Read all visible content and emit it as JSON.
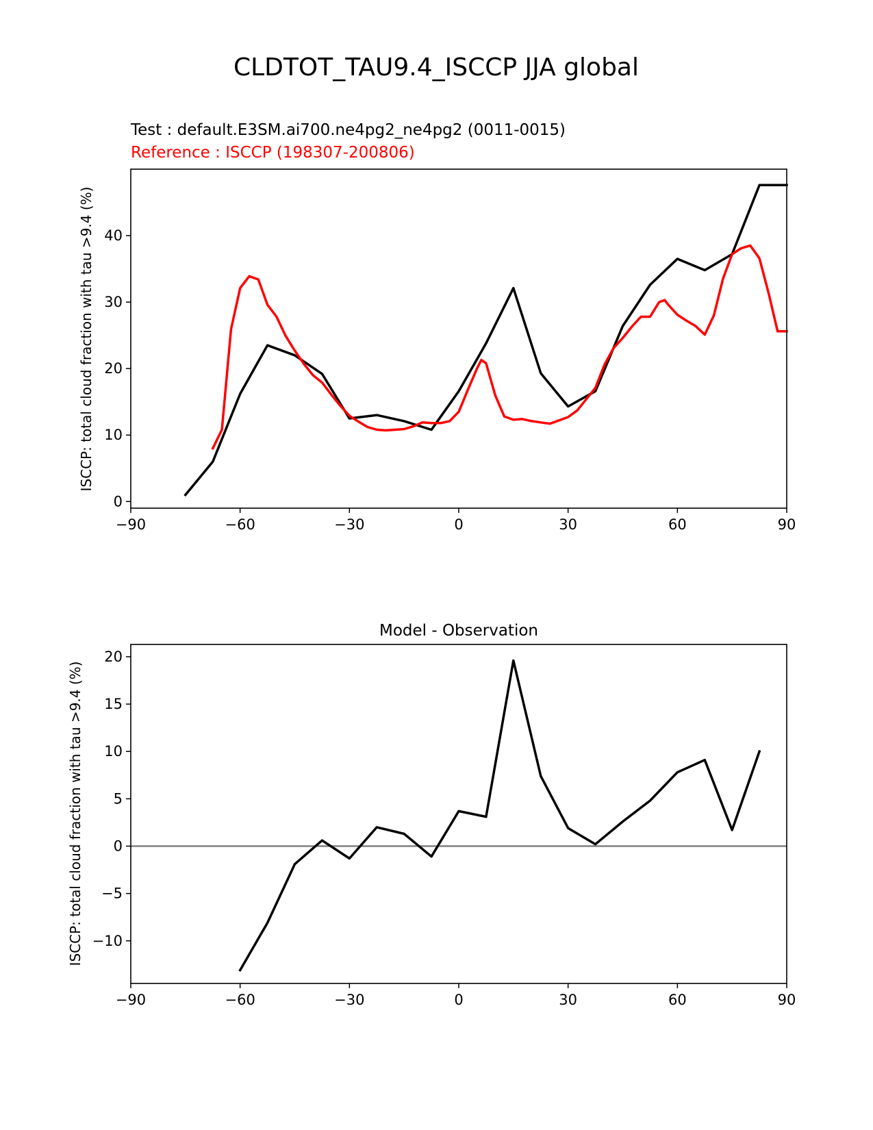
{
  "page": {
    "title": "CLDTOT_TAU9.4_ISCCP JJA global"
  },
  "colors": {
    "test": "#000000",
    "reference": "#ff0000",
    "zero_line": "#808080"
  },
  "chart_data": [
    {
      "type": "line",
      "test_label": "Test : default.E3SM.ai700.ne4pg2_ne4pg2 (0011-0015)",
      "reference_label": "Reference : ISCCP (198307-200806)",
      "ylabel": "ISCCP: total cloud fraction with tau >9.4 (%)",
      "xlim": [
        -90,
        90
      ],
      "ylim": [
        -1,
        50
      ],
      "xticks": [
        -90,
        -60,
        -30,
        0,
        30,
        60,
        90
      ],
      "xtick_labels": [
        "−90",
        "−60",
        "−30",
        "0",
        "30",
        "60",
        "90"
      ],
      "yticks": [
        0,
        10,
        20,
        30,
        40
      ],
      "ytick_labels": [
        "0",
        "10",
        "20",
        "30",
        "40"
      ],
      "series": [
        {
          "color": "#000000",
          "x": [
            -75,
            -67.5,
            -60,
            -52.5,
            -45,
            -37.5,
            -30,
            -22.5,
            -15,
            -7.5,
            0,
            7.5,
            15,
            22.5,
            30,
            37.5,
            45,
            52.5,
            60,
            67.5,
            75,
            82.5,
            90
          ],
          "y": [
            1.0,
            6.0,
            16.2,
            23.5,
            22.0,
            19.2,
            12.5,
            13.0,
            12.1,
            10.8,
            16.6,
            23.8,
            32.1,
            19.3,
            14.3,
            16.6,
            26.4,
            32.6,
            36.5,
            34.8,
            37.2,
            47.6,
            47.6
          ]
        },
        {
          "color": "#ff0000",
          "x": [
            -67.5,
            -65,
            -62.5,
            -60,
            -57.5,
            -55,
            -52.5,
            -50,
            -47.5,
            -45,
            -42.5,
            -40,
            -37.5,
            -35,
            -32.5,
            -30,
            -27.5,
            -25,
            -22.5,
            -20,
            -17.5,
            -15,
            -12.5,
            -10,
            -7.5,
            -5,
            -2.5,
            0,
            2.5,
            5,
            6.2,
            7.5,
            10,
            12.5,
            15,
            17.5,
            20,
            22.5,
            25,
            27.5,
            30,
            32.5,
            35,
            37.5,
            40,
            42.5,
            45,
            47.5,
            50,
            52.5,
            55,
            56.5,
            57.5,
            60,
            62.5,
            65,
            67.5,
            70,
            72.5,
            75,
            77.5,
            80,
            82.5,
            85,
            87.5,
            90
          ],
          "y": [
            8.0,
            10.8,
            25.9,
            32.1,
            33.9,
            33.4,
            29.6,
            27.8,
            24.9,
            22.7,
            20.7,
            19.0,
            17.9,
            16.1,
            14.4,
            12.9,
            12.0,
            11.2,
            10.8,
            10.7,
            10.8,
            10.9,
            11.3,
            11.9,
            11.8,
            11.8,
            12.1,
            13.5,
            16.8,
            20.0,
            21.3,
            20.8,
            16.0,
            12.8,
            12.3,
            12.4,
            12.1,
            11.9,
            11.7,
            12.2,
            12.7,
            13.7,
            15.4,
            17.1,
            20.6,
            23.1,
            24.6,
            26.3,
            27.8,
            27.8,
            30.0,
            30.3,
            29.6,
            28.1,
            27.2,
            26.4,
            25.1,
            28.0,
            33.5,
            37.2,
            38.1,
            38.5,
            36.6,
            31.4,
            25.6,
            25.6
          ]
        }
      ]
    },
    {
      "type": "line",
      "title": "Model - Observation",
      "ylabel": "ISCCP: total cloud fraction with tau >9.4 (%)",
      "xlim": [
        -90,
        90
      ],
      "ylim": [
        -14.5,
        21.3
      ],
      "xticks": [
        -90,
        -60,
        -30,
        0,
        30,
        60,
        90
      ],
      "xtick_labels": [
        "−90",
        "−60",
        "−30",
        "0",
        "30",
        "60",
        "90"
      ],
      "yticks": [
        -10,
        -5,
        0,
        5,
        10,
        15,
        20
      ],
      "ytick_labels": [
        "−10",
        "−5",
        "0",
        "5",
        "10",
        "15",
        "20"
      ],
      "zero_line": true,
      "series": [
        {
          "color": "#000000",
          "x": [
            -60,
            -52.5,
            -45,
            -37.5,
            -30,
            -22.5,
            -15,
            -7.5,
            0,
            7.5,
            15,
            22.5,
            30,
            37.5,
            45,
            52.5,
            60,
            67.5,
            75,
            82.5
          ],
          "y": [
            -13.1,
            -8.1,
            -1.9,
            0.6,
            -1.3,
            2.0,
            1.3,
            -1.1,
            3.7,
            3.1,
            19.6,
            7.4,
            1.9,
            0.2,
            2.6,
            4.8,
            7.8,
            9.1,
            1.7,
            10.0
          ]
        }
      ]
    }
  ]
}
